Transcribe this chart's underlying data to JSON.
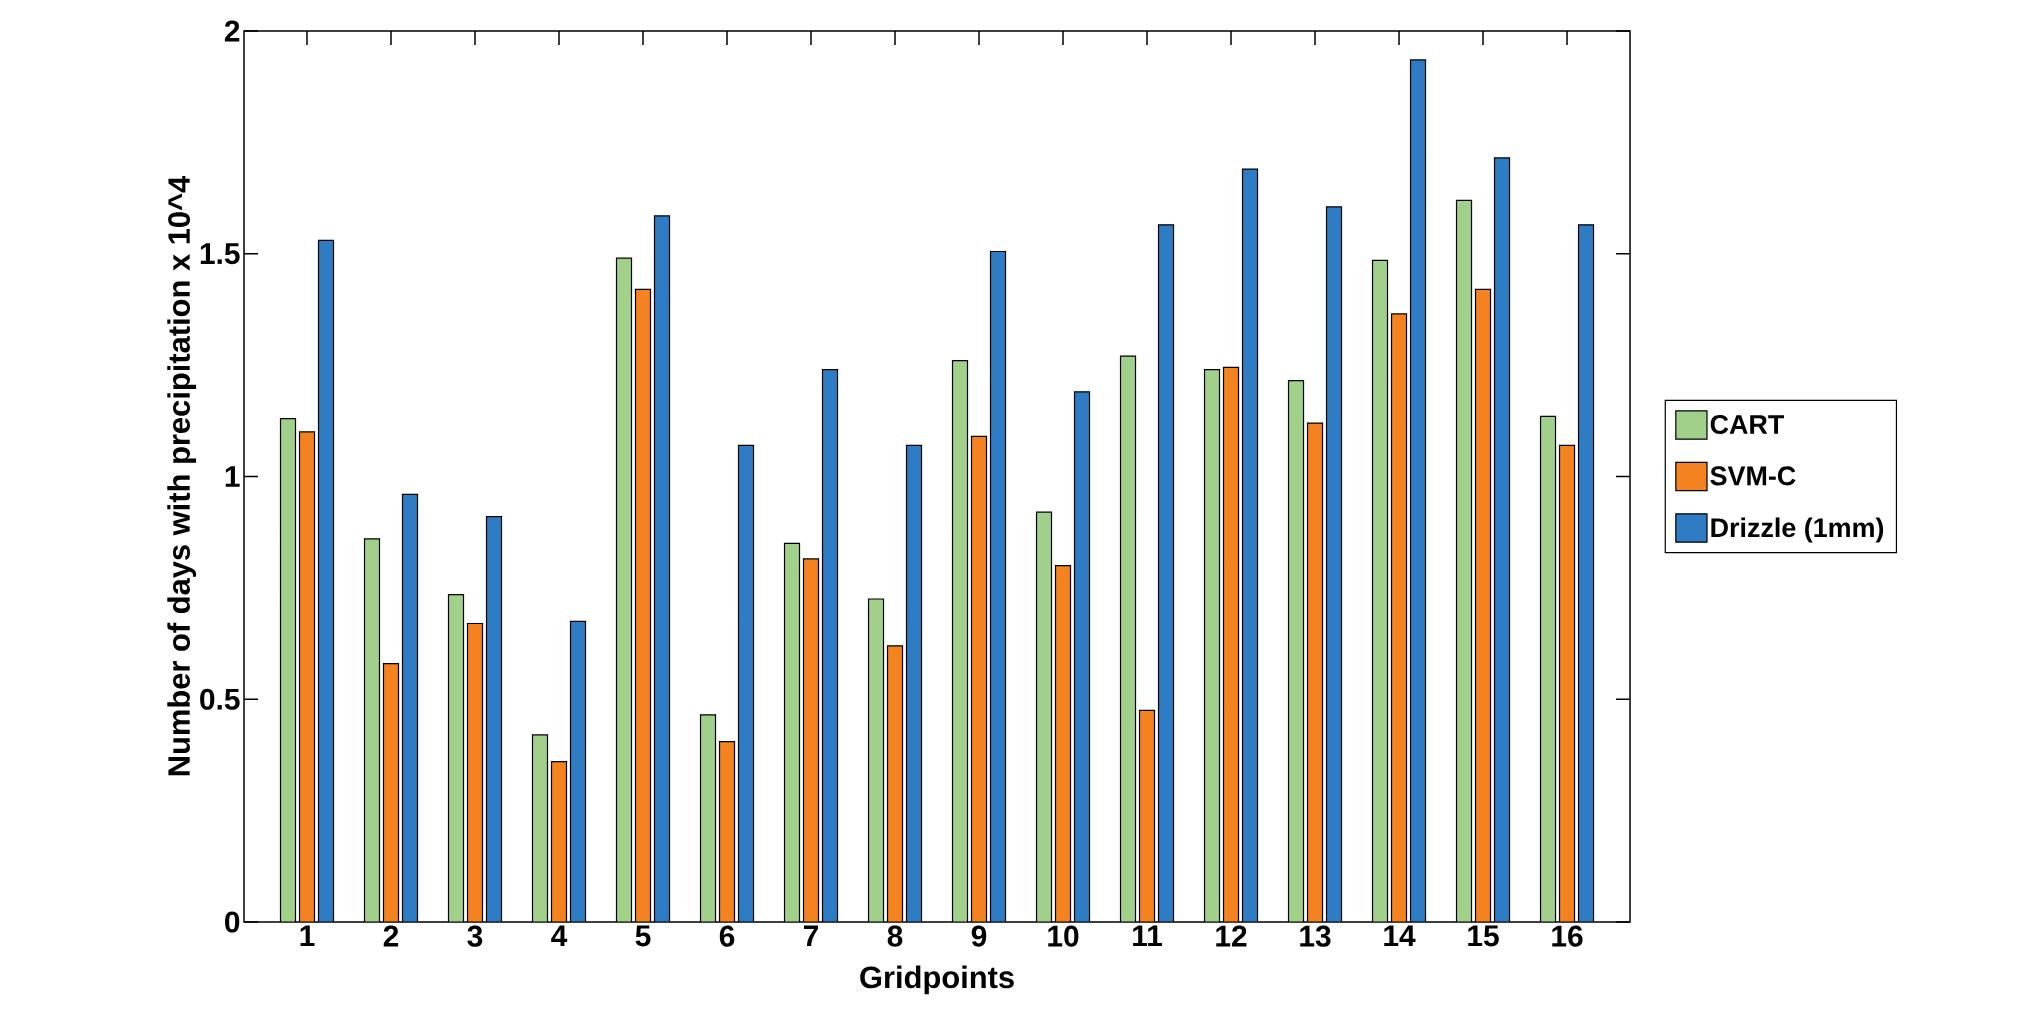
{
  "chart_data": {
    "type": "bar",
    "xlabel": "Gridpoints",
    "ylabel": "Number of days with precipitation x 10^4",
    "categories": [
      "1",
      "2",
      "3",
      "4",
      "5",
      "6",
      "7",
      "8",
      "9",
      "10",
      "11",
      "12",
      "13",
      "14",
      "15",
      "16"
    ],
    "series": [
      {
        "name": "CART",
        "color": "#a1d08a",
        "values": [
          1.13,
          0.86,
          0.735,
          0.42,
          1.49,
          0.465,
          0.85,
          0.725,
          1.26,
          0.92,
          1.27,
          1.24,
          1.215,
          1.485,
          1.62,
          1.135
        ]
      },
      {
        "name": "SVM-C",
        "color": "#f58220",
        "values": [
          1.1,
          0.58,
          0.67,
          0.36,
          1.42,
          0.405,
          0.815,
          0.62,
          1.09,
          0.8,
          0.475,
          1.245,
          1.12,
          1.365,
          1.42,
          1.07
        ]
      },
      {
        "name": "Drizzle (1mm)",
        "color": "#2e7dc4",
        "values": [
          1.53,
          0.96,
          0.91,
          0.675,
          1.585,
          1.07,
          1.24,
          1.07,
          1.505,
          1.19,
          1.565,
          1.69,
          1.605,
          1.935,
          1.715,
          1.565
        ]
      }
    ],
    "ylim": [
      0,
      2
    ],
    "yticks": [
      0,
      0.5,
      1,
      1.5,
      2
    ],
    "grid": false,
    "legend": "right"
  }
}
